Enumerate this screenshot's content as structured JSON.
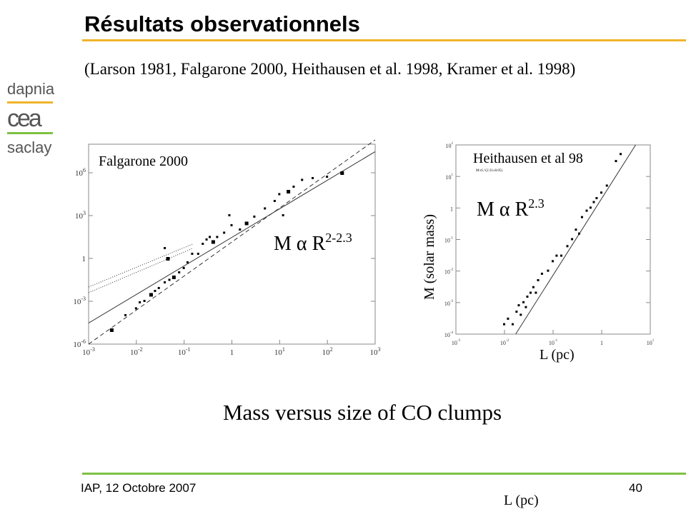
{
  "slide": {
    "title": "Résultats observationnels",
    "references": "(Larson 1981, Falgarone 2000, Heithausen et al. 1998, Kramer et al. 1998)",
    "caption": "Mass versus size of CO clumps",
    "footer_left": "IAP, 12 Octobre 2007",
    "page_number": "40",
    "footer_stray_label": "L (pc)",
    "logo": {
      "top": "dapnia",
      "middle": "cea",
      "bottom": "saclay"
    },
    "colors": {
      "title_rule": "#f0b429",
      "footer_rule": "#7dc242"
    }
  },
  "chart_data": [
    {
      "type": "scatter",
      "title": "Falgarone 2000",
      "annotation": {
        "base": "M α R",
        "exponent": "2-2.3"
      },
      "xlabel": "",
      "ylabel": "",
      "xscale": "log",
      "yscale": "log",
      "xlim": [
        0.001,
        1000
      ],
      "ylim": [
        1e-06,
        100000000
      ],
      "xticks": [
        "10^-3",
        "10^-2",
        "10^-1",
        "1",
        "10^1",
        "10^2",
        "10^3"
      ],
      "yticks": [
        "10^-6",
        "10^-3",
        "1",
        "10^3",
        "10^6"
      ],
      "grid": false,
      "fit_lines": [
        {
          "style": "solid",
          "x": [
            0.001,
            1000
          ],
          "y": [
            3e-05,
            30000000
          ]
        },
        {
          "style": "dashed",
          "x": [
            0.001,
            1000
          ],
          "y": [
            1e-06,
            200000000
          ]
        },
        {
          "style": "dotted",
          "x": [
            0.001,
            0.15
          ],
          "y": [
            0.01,
            10
          ]
        },
        {
          "style": "dotted",
          "x": [
            0.001,
            0.15
          ],
          "y": [
            0.004,
            5
          ]
        }
      ],
      "points": {
        "x": [
          0.003,
          0.006,
          0.01,
          0.012,
          0.015,
          0.02,
          0.025,
          0.03,
          0.04,
          0.05,
          0.06,
          0.08,
          0.1,
          0.12,
          0.04,
          0.045,
          0.2,
          0.25,
          0.3,
          0.35,
          0.4,
          0.5,
          0.7,
          1,
          1.5,
          2,
          3,
          5,
          8,
          10,
          15,
          20,
          30,
          50,
          100,
          200,
          0.15,
          0.9,
          12
        ],
        "y": [
          1e-05,
          0.0001,
          0.0003,
          0.0008,
          0.001,
          0.003,
          0.005,
          0.008,
          0.02,
          0.03,
          0.05,
          0.1,
          0.2,
          0.5,
          5,
          1,
          2,
          10,
          20,
          30,
          15,
          30,
          60,
          200,
          100,
          300,
          800,
          3000,
          10000,
          30000,
          50000,
          100000,
          300000,
          400000,
          500000,
          1000000,
          2,
          1000,
          1000
        ]
      }
    },
    {
      "type": "scatter",
      "title": "Heithausen et al 98",
      "annotation": {
        "base": "M α R",
        "exponent": "2.3"
      },
      "fit_label": "M∝L^(2.31±0.05)",
      "xlabel": "L (pc)",
      "ylabel": "M (solar mass)",
      "xscale": "log",
      "yscale": "log",
      "xlim": [
        0.001,
        10
      ],
      "ylim": [
        0.0001,
        100
      ],
      "xticks": [
        "10^-3",
        "10^-2",
        "10^-1",
        "1",
        "10^1"
      ],
      "yticks": [
        "10^-4",
        "10^-3",
        "10^-2",
        "10^-1",
        "1",
        "10^1",
        "10^2"
      ],
      "grid": false,
      "fit_lines": [
        {
          "style": "solid",
          "x": [
            0.017,
            5
          ],
          "y": [
            0.0001,
            100
          ]
        }
      ],
      "points": {
        "x": [
          0.01,
          0.012,
          0.015,
          0.018,
          0.02,
          0.022,
          0.025,
          0.028,
          0.03,
          0.035,
          0.04,
          0.045,
          0.05,
          0.06,
          0.08,
          0.1,
          0.12,
          0.15,
          0.2,
          0.25,
          0.3,
          0.35,
          0.4,
          0.5,
          0.6,
          0.7,
          0.8,
          1,
          1.3,
          2,
          2.5
        ],
        "y": [
          0.0002,
          0.0003,
          0.0002,
          0.0005,
          0.0008,
          0.0004,
          0.001,
          0.0007,
          0.0015,
          0.002,
          0.003,
          0.002,
          0.005,
          0.008,
          0.01,
          0.02,
          0.03,
          0.03,
          0.06,
          0.1,
          0.2,
          0.15,
          0.5,
          0.8,
          1,
          1.5,
          2,
          3,
          5,
          30,
          50
        ]
      }
    }
  ]
}
